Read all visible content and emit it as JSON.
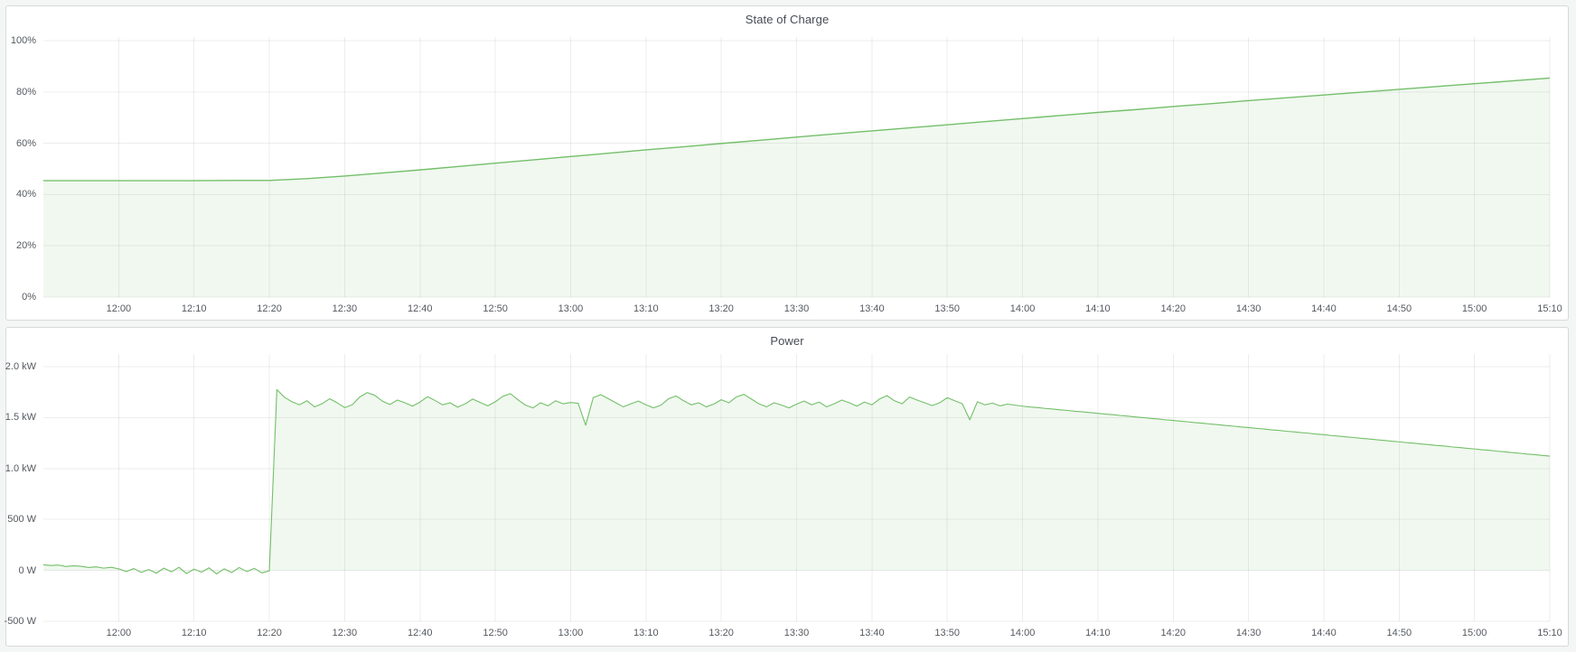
{
  "page": {
    "background": "#f4f5f5",
    "panel_border": "#d8d9da"
  },
  "chart_data": [
    {
      "type": "area",
      "title": "State of Charge",
      "unit": "percent",
      "grid": true,
      "legend": "none",
      "x_domain": {
        "start": "11:50",
        "end": "15:10",
        "minutes": 200
      },
      "y_range_drawn": [
        0,
        101.4
      ],
      "x_ticks": [
        {
          "m": 10,
          "label": "12:00"
        },
        {
          "m": 20,
          "label": "12:10"
        },
        {
          "m": 30,
          "label": "12:20"
        },
        {
          "m": 40,
          "label": "12:30"
        },
        {
          "m": 50,
          "label": "12:40"
        },
        {
          "m": 60,
          "label": "12:50"
        },
        {
          "m": 70,
          "label": "13:00"
        },
        {
          "m": 80,
          "label": "13:10"
        },
        {
          "m": 90,
          "label": "13:20"
        },
        {
          "m": 100,
          "label": "13:30"
        },
        {
          "m": 110,
          "label": "13:40"
        },
        {
          "m": 120,
          "label": "13:50"
        },
        {
          "m": 130,
          "label": "14:00"
        },
        {
          "m": 140,
          "label": "14:10"
        },
        {
          "m": 150,
          "label": "14:20"
        },
        {
          "m": 160,
          "label": "14:30"
        },
        {
          "m": 170,
          "label": "14:40"
        },
        {
          "m": 180,
          "label": "14:50"
        },
        {
          "m": 190,
          "label": "15:00"
        },
        {
          "m": 200,
          "label": "15:10"
        }
      ],
      "y_ticks": [
        {
          "v": 0,
          "label": "0%"
        },
        {
          "v": 20,
          "label": "20%"
        },
        {
          "v": 40,
          "label": "40%"
        },
        {
          "v": 60,
          "label": "60%"
        },
        {
          "v": 80,
          "label": "80%"
        },
        {
          "v": 100,
          "label": "100%"
        }
      ],
      "series": [
        {
          "name": "State of Charge",
          "color": "#73bf69",
          "fill": "rgba(115,191,105,0.11)",
          "line_width": 1.4,
          "fill_baseline": 0,
          "t_start_min": 0,
          "t_step_min": 5,
          "values": [
            45.4,
            45.4,
            45.4,
            45.4,
            45.4,
            45.5,
            45.5,
            46.2,
            47.2,
            48.4,
            49.6,
            50.9,
            52.2,
            53.5,
            54.8,
            56.1,
            57.4,
            58.6,
            59.9,
            61.1,
            62.4,
            63.6,
            64.8,
            66.0,
            67.2,
            68.4,
            69.6,
            70.8,
            72.0,
            73.1,
            74.3,
            75.4,
            76.6,
            77.7,
            78.8,
            79.9,
            81.0,
            82.1,
            83.2,
            84.3,
            85.4
          ]
        }
      ]
    },
    {
      "type": "area",
      "title": "Power",
      "unit": "watt",
      "grid": true,
      "legend": "none",
      "x_domain": {
        "start": "11:50",
        "end": "15:10",
        "minutes": 200
      },
      "y_range_drawn": [
        -500,
        2124
      ],
      "x_ticks": [
        {
          "m": 10,
          "label": "12:00"
        },
        {
          "m": 20,
          "label": "12:10"
        },
        {
          "m": 30,
          "label": "12:20"
        },
        {
          "m": 40,
          "label": "12:30"
        },
        {
          "m": 50,
          "label": "12:40"
        },
        {
          "m": 60,
          "label": "12:50"
        },
        {
          "m": 70,
          "label": "13:00"
        },
        {
          "m": 80,
          "label": "13:10"
        },
        {
          "m": 90,
          "label": "13:20"
        },
        {
          "m": 100,
          "label": "13:30"
        },
        {
          "m": 110,
          "label": "13:40"
        },
        {
          "m": 120,
          "label": "13:50"
        },
        {
          "m": 130,
          "label": "14:00"
        },
        {
          "m": 140,
          "label": "14:10"
        },
        {
          "m": 150,
          "label": "14:20"
        },
        {
          "m": 160,
          "label": "14:30"
        },
        {
          "m": 170,
          "label": "14:40"
        },
        {
          "m": 180,
          "label": "14:50"
        },
        {
          "m": 190,
          "label": "15:00"
        },
        {
          "m": 200,
          "label": "15:10"
        }
      ],
      "y_ticks": [
        {
          "v": -500,
          "label": "-500 W"
        },
        {
          "v": 0,
          "label": "0 W"
        },
        {
          "v": 500,
          "label": "500 W"
        },
        {
          "v": 1000,
          "label": "1.0 kW"
        },
        {
          "v": 1500,
          "label": "1.5 kW"
        },
        {
          "v": 2000,
          "label": "2.0 kW"
        }
      ],
      "series": [
        {
          "name": "Power",
          "color": "#73bf69",
          "fill": "rgba(115,191,105,0.11)",
          "line_width": 1.1,
          "fill_baseline": 0,
          "t_start_min": 0,
          "t_step_min": 1,
          "values": [
            55,
            48,
            52,
            38,
            45,
            40,
            28,
            35,
            22,
            30,
            15,
            -12,
            18,
            -20,
            8,
            -28,
            22,
            -15,
            30,
            -32,
            12,
            -18,
            25,
            -35,
            15,
            -22,
            28,
            -12,
            20,
            -25,
            -5,
            1775,
            1700,
            1655,
            1625,
            1665,
            1605,
            1635,
            1685,
            1645,
            1598,
            1625,
            1702,
            1745,
            1718,
            1662,
            1628,
            1672,
            1645,
            1612,
            1652,
            1705,
            1668,
            1625,
            1645,
            1602,
            1635,
            1682,
            1648,
            1615,
            1655,
            1708,
            1735,
            1675,
            1622,
            1595,
            1645,
            1615,
            1665,
            1635,
            1648,
            1640,
            1425,
            1695,
            1725,
            1685,
            1645,
            1605,
            1635,
            1662,
            1625,
            1595,
            1622,
            1685,
            1712,
            1665,
            1625,
            1645,
            1605,
            1632,
            1675,
            1645,
            1702,
            1728,
            1682,
            1635,
            1605,
            1645,
            1622,
            1595,
            1632,
            1662,
            1625,
            1652,
            1605,
            1635,
            1672,
            1645,
            1612,
            1652,
            1625,
            1682,
            1715,
            1665,
            1635,
            1702,
            1672,
            1645,
            1618,
            1645,
            1695,
            1665,
            1635,
            1478,
            1655,
            1625,
            1642,
            1615,
            1632,
            1622,
            1612,
            1604,
            1598,
            1590,
            1584,
            1576,
            1570,
            1562,
            1556,
            1548,
            1542,
            1534,
            1528,
            1520,
            1514,
            1506,
            1500,
            1492,
            1486,
            1478,
            1472,
            1464,
            1458,
            1450,
            1444,
            1436,
            1430,
            1422,
            1416,
            1408,
            1402,
            1394,
            1388,
            1380,
            1374,
            1366,
            1360,
            1352,
            1346,
            1338,
            1332,
            1324,
            1318,
            1310,
            1304,
            1296,
            1290,
            1282,
            1276,
            1268,
            1262,
            1254,
            1248,
            1240,
            1234,
            1226,
            1220,
            1212,
            1206,
            1198,
            1192,
            1184,
            1178,
            1170,
            1164,
            1156,
            1150,
            1142,
            1136,
            1128,
            1122
          ]
        }
      ]
    }
  ],
  "style": {
    "grid_color": "rgba(0,0,0,0.07)",
    "axis_text_color": "#55595f"
  }
}
